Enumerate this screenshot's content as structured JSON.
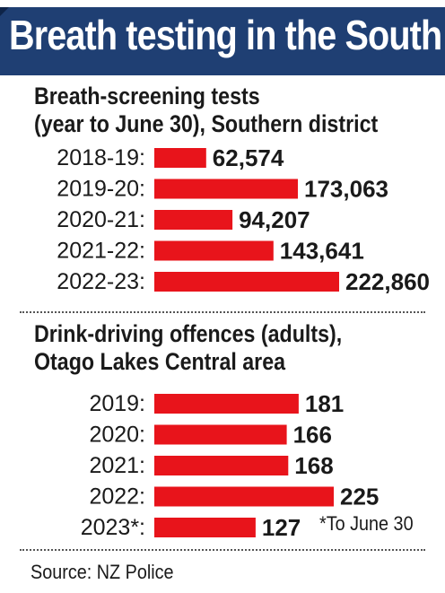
{
  "title": "Breath testing in the South",
  "source": "Source: NZ Police",
  "colors": {
    "header": "#1f3f73",
    "bar": "#e8141b",
    "text": "#1a1a1a"
  },
  "chart_data": [
    {
      "type": "bar",
      "orientation": "horizontal",
      "title_lines": [
        "Breath-screening tests",
        "(year to June 30), Southern district"
      ],
      "categories": [
        "2018-19:",
        "2019-20:",
        "2020-21:",
        "2021-22:",
        "2022-23:"
      ],
      "values": [
        62574,
        173063,
        94207,
        143641,
        222860
      ],
      "value_labels": [
        "62,574",
        "173,063",
        "94,207",
        "143,641",
        "222,860"
      ],
      "xlim": [
        0,
        222860
      ],
      "grid": false
    },
    {
      "type": "bar",
      "orientation": "horizontal",
      "title_lines": [
        "Drink-driving offences (adults),",
        "Otago Lakes Central area"
      ],
      "categories": [
        "2019:",
        "2020:",
        "2021:",
        "2022:",
        "2023*:"
      ],
      "values": [
        181,
        166,
        168,
        225,
        127
      ],
      "value_labels": [
        "181",
        "166",
        "168",
        "225",
        "127"
      ],
      "note": "*To June 30",
      "xlim": [
        0,
        225
      ],
      "grid": false
    }
  ]
}
